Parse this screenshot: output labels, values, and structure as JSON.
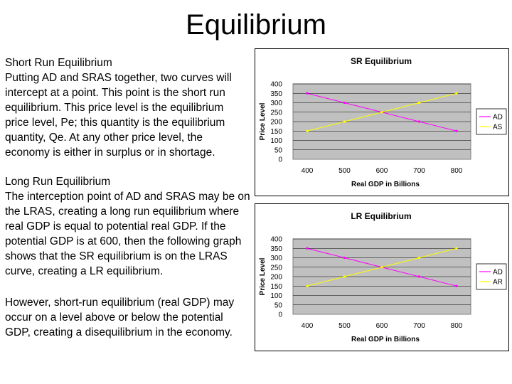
{
  "slide": {
    "title": "Equilibrium",
    "short_run": {
      "heading": "Short Run Equilibrium",
      "body": "Putting AD and SRAS together, two curves will intercept at a point. This point is the short run equilibrium. This price level is the equilibrium price level, Pe; this quantity is the equilibrium quantity, Qe. At any other price level, the economy is either in surplus or in shortage."
    },
    "long_run": {
      "heading": "Long Run Equilibrium",
      "body": "The interception point of AD and SRAS may be on the LRAS, creating a long run equilibrium where real GDP is equal to potential real GDP. If the potential GDP is at 600, then the following graph shows that the SR equilibrium is on the LRAS curve, creating a LR equilibrium."
    },
    "closing": "However, short-run equilibrium (real GDP) may occur on a level above or below the potential GDP, creating a disequilibrium in the economy."
  },
  "chart_data": [
    {
      "type": "line",
      "title": "SR Equilibrium",
      "xlabel": "Real GDP in Billions",
      "ylabel": "Price Level",
      "x": [
        400,
        500,
        600,
        700,
        800
      ],
      "ylim": [
        0,
        400
      ],
      "yticks": [
        0,
        50,
        100,
        150,
        200,
        250,
        300,
        350,
        400
      ],
      "grid": true,
      "legend_position": "right",
      "series": [
        {
          "name": "AD",
          "values": [
            350,
            300,
            250,
            200,
            150
          ],
          "color": "#ff00ff"
        },
        {
          "name": "AS",
          "values": [
            150,
            200,
            250,
            300,
            350
          ],
          "color": "#ffff00"
        }
      ]
    },
    {
      "type": "line",
      "title": "LR Equilibrium",
      "xlabel": "Real GDP in Billions",
      "ylabel": "Price Level",
      "x": [
        400,
        500,
        600,
        700,
        800
      ],
      "ylim": [
        0,
        400
      ],
      "yticks": [
        0,
        50,
        100,
        150,
        200,
        250,
        300,
        350,
        400
      ],
      "grid": true,
      "legend_position": "right",
      "series": [
        {
          "name": "AD",
          "values": [
            350,
            300,
            250,
            200,
            150
          ],
          "color": "#ff00ff"
        },
        {
          "name": "AR",
          "values": [
            150,
            200,
            250,
            300,
            350
          ],
          "color": "#ffff00"
        }
      ]
    }
  ]
}
